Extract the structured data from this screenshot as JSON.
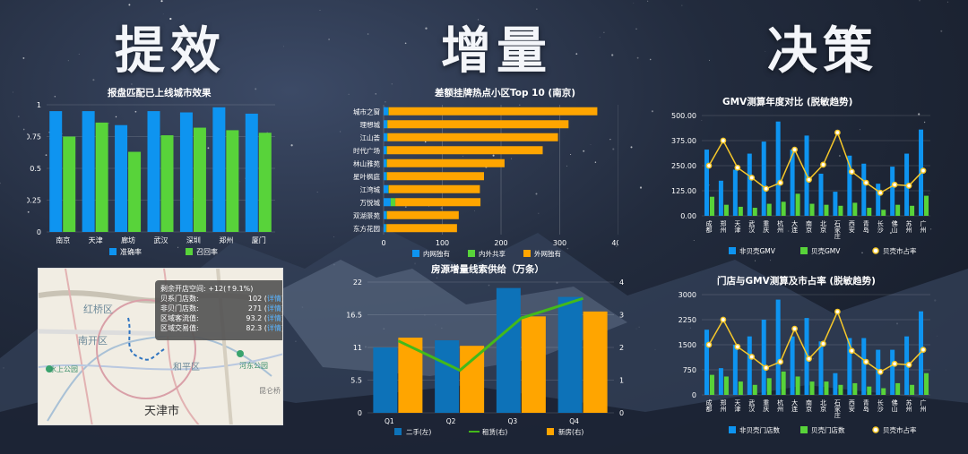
{
  "headers": {
    "left": "提效",
    "center": "增量",
    "right": "决策"
  },
  "colors": {
    "blue": "#0e94f0",
    "green": "#58d33a",
    "orange": "#ffa500",
    "darkblue": "#0d72b8",
    "yellow": "#f7c829",
    "line_green": "#43b91a"
  },
  "chart1": {
    "title": "报盘匹配已上线城市效果",
    "chart_data": {
      "type": "bar",
      "categories": [
        "南京",
        "天津",
        "廊坊",
        "武汉",
        "深圳",
        "郑州",
        "厦门"
      ],
      "series": [
        {
          "name": "准确率",
          "values": [
            0.95,
            0.95,
            0.84,
            0.95,
            0.94,
            0.98,
            0.93
          ]
        },
        {
          "name": "召回率",
          "values": [
            0.75,
            0.86,
            0.63,
            0.76,
            0.82,
            0.8,
            0.78
          ]
        }
      ],
      "yticks": [
        "0",
        "0.25",
        "0.5",
        "0.75",
        "1"
      ],
      "ylim": [
        0,
        1
      ],
      "grid": true,
      "legend": "bottom"
    }
  },
  "chart2": {
    "title": "差额挂牌热点小区Top 10 (南京)",
    "chart_data": {
      "type": "bar",
      "orientation": "horizontal",
      "categories": [
        "城市之窗",
        "理想城",
        "江山荟",
        "时代广场",
        "林山雅苑",
        "星叶枫庭",
        "江湾城",
        "万悦城",
        "双湖景苑",
        "东方花园"
      ],
      "series": [
        {
          "name": "内网独有",
          "values": [
            8,
            6,
            6,
            5,
            5,
            5,
            8,
            12,
            5,
            4
          ]
        },
        {
          "name": "内外共享",
          "values": [
            1,
            1,
            1,
            1,
            1,
            1,
            1,
            8,
            1,
            1
          ]
        },
        {
          "name": "外网独有",
          "values": [
            355,
            308,
            290,
            265,
            200,
            165,
            155,
            145,
            122,
            120
          ]
        }
      ],
      "xticks": [
        "0",
        "100",
        "200",
        "300",
        "400"
      ],
      "xlim": [
        0,
        400
      ],
      "legend": "bottom"
    }
  },
  "chart3": {
    "title": "房源增量线索供给（万条）",
    "chart_data": {
      "type": "bar",
      "categories": [
        "Q1",
        "Q2",
        "Q3",
        "Q4"
      ],
      "series": [
        {
          "name": "二手(左)",
          "kind": "bar",
          "axis": "left",
          "values": [
            11.0,
            12.2,
            21.0,
            19.5
          ]
        },
        {
          "name": "租赁(右)",
          "kind": "line",
          "axis": "right",
          "values": [
            2.2,
            1.3,
            2.9,
            3.5
          ]
        },
        {
          "name": "新房(右)",
          "kind": "bar",
          "axis": "right",
          "values": [
            2.3,
            2.05,
            2.95,
            3.1
          ]
        }
      ],
      "yticks_left": [
        "0",
        "5.5",
        "11",
        "16.5",
        "22"
      ],
      "ylim_left": [
        0,
        22
      ],
      "yticks_right": [
        "0",
        "1",
        "2",
        "3",
        "4"
      ],
      "ylim_right": [
        0,
        4
      ],
      "legend": "bottom"
    }
  },
  "chart4": {
    "title": "GMV测算年度对比 (脱敏趋势)",
    "chart_data": {
      "type": "bar",
      "categories": [
        "成都",
        "郑州",
        "天津",
        "武汉",
        "重庆",
        "杭州",
        "大连",
        "南京",
        "北京",
        "石家庄",
        "西安",
        "青岛",
        "长沙",
        "佛山",
        "苏州",
        "广州"
      ],
      "series": [
        {
          "name": "非贝壳GMV",
          "kind": "bar",
          "values": [
            330,
            175,
            230,
            310,
            370,
            470,
            330,
            400,
            210,
            120,
            300,
            260,
            160,
            245,
            310,
            430
          ]
        },
        {
          "name": "贝壳GMV",
          "kind": "bar",
          "values": [
            95,
            55,
            45,
            40,
            60,
            70,
            110,
            60,
            55,
            50,
            65,
            40,
            30,
            55,
            50,
            100
          ]
        },
        {
          "name": "贝壳市占率",
          "kind": "line",
          "values": [
            0.5,
            0.75,
            0.48,
            0.38,
            0.27,
            0.33,
            0.66,
            0.36,
            0.51,
            0.83,
            0.44,
            0.33,
            0.23,
            0.31,
            0.3,
            0.45
          ]
        }
      ],
      "yticks": [
        "0.00",
        "125.00",
        "250.00",
        "375.00",
        "500.00"
      ],
      "ylim": [
        0,
        500
      ],
      "legend": "bottom"
    }
  },
  "chart5": {
    "title": "门店与GMV测算及市占率 (脱敏趋势)",
    "chart_data": {
      "type": "bar",
      "categories": [
        "成都",
        "郑州",
        "天津",
        "武汉",
        "重庆",
        "杭州",
        "大连",
        "南京",
        "北京",
        "石家庄",
        "西安",
        "青岛",
        "长沙",
        "佛山",
        "苏州",
        "广州"
      ],
      "series": [
        {
          "name": "非贝壳门店数",
          "kind": "bar",
          "values": [
            1950,
            800,
            1500,
            1750,
            2250,
            2850,
            1750,
            2300,
            1600,
            650,
            1700,
            1700,
            1350,
            1350,
            1750,
            2500
          ]
        },
        {
          "name": "贝壳门店数",
          "kind": "bar",
          "values": [
            600,
            550,
            400,
            300,
            500,
            700,
            550,
            400,
            400,
            300,
            350,
            250,
            200,
            350,
            300,
            650
          ]
        },
        {
          "name": "贝壳市占率",
          "kind": "line",
          "values": [
            0.5,
            0.75,
            0.48,
            0.38,
            0.27,
            0.33,
            0.66,
            0.36,
            0.51,
            0.83,
            0.44,
            0.33,
            0.23,
            0.31,
            0.3,
            0.45
          ]
        }
      ],
      "yticks": [
        "0",
        "750",
        "1500",
        "2250",
        "3000"
      ],
      "ylim": [
        0,
        3000
      ],
      "legend": "bottom"
    }
  },
  "map": {
    "labels": {
      "hongqiao": "红桥区",
      "nankai": "南开区",
      "heping": "和平区",
      "tianjin": "天津市",
      "shuishang": "水上公园",
      "hedong": "河东公园",
      "kunwei": "昆仑桥"
    },
    "tooltip": {
      "title": "剩余开店空间: +12(↑9.1%)",
      "rows": [
        {
          "label": "贝系门店数:",
          "value": "102",
          "link": "详情"
        },
        {
          "label": "非贝门店数:",
          "value": "271",
          "link": "详情"
        },
        {
          "label": "区域客流值:",
          "value": "93.2",
          "link": "详情"
        },
        {
          "label": "区域交易值:",
          "value": "82.3",
          "link": "详情"
        }
      ]
    }
  }
}
